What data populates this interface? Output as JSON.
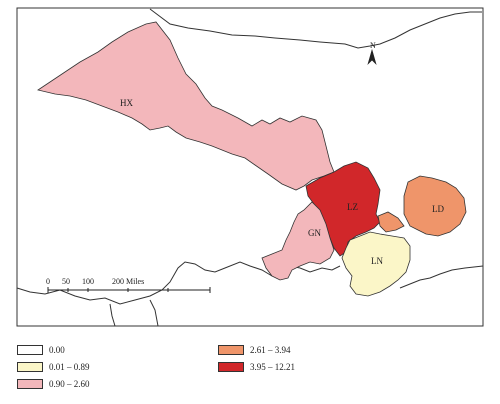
{
  "colors": {
    "class_0": "#ffffff",
    "class_1": "#fbf6c8",
    "class_2": "#f3b7bb",
    "class_3": "#ef956a",
    "class_4": "#d1272a",
    "border": "#333333"
  },
  "regions": [
    {
      "name": "HX",
      "class": "class_2"
    },
    {
      "name": "LZ",
      "class": "class_4"
    },
    {
      "name": "GN",
      "class": "class_2"
    },
    {
      "name": "LD",
      "class": "class_3"
    },
    {
      "name": "LN",
      "class": "class_1"
    }
  ],
  "north_arrow": {
    "label": "N"
  },
  "scale_bar": {
    "ticks": [
      "0",
      "50",
      "100",
      "200 Miles"
    ]
  },
  "legend": [
    {
      "label": "0.00",
      "class": "class_0"
    },
    {
      "label": "0.01 – 0.89",
      "class": "class_1"
    },
    {
      "label": "0.90 – 2.60",
      "class": "class_2"
    },
    {
      "label": "2.61 – 3.94",
      "class": "class_3"
    },
    {
      "label": "3.95 – 12.21",
      "class": "class_4"
    }
  ]
}
